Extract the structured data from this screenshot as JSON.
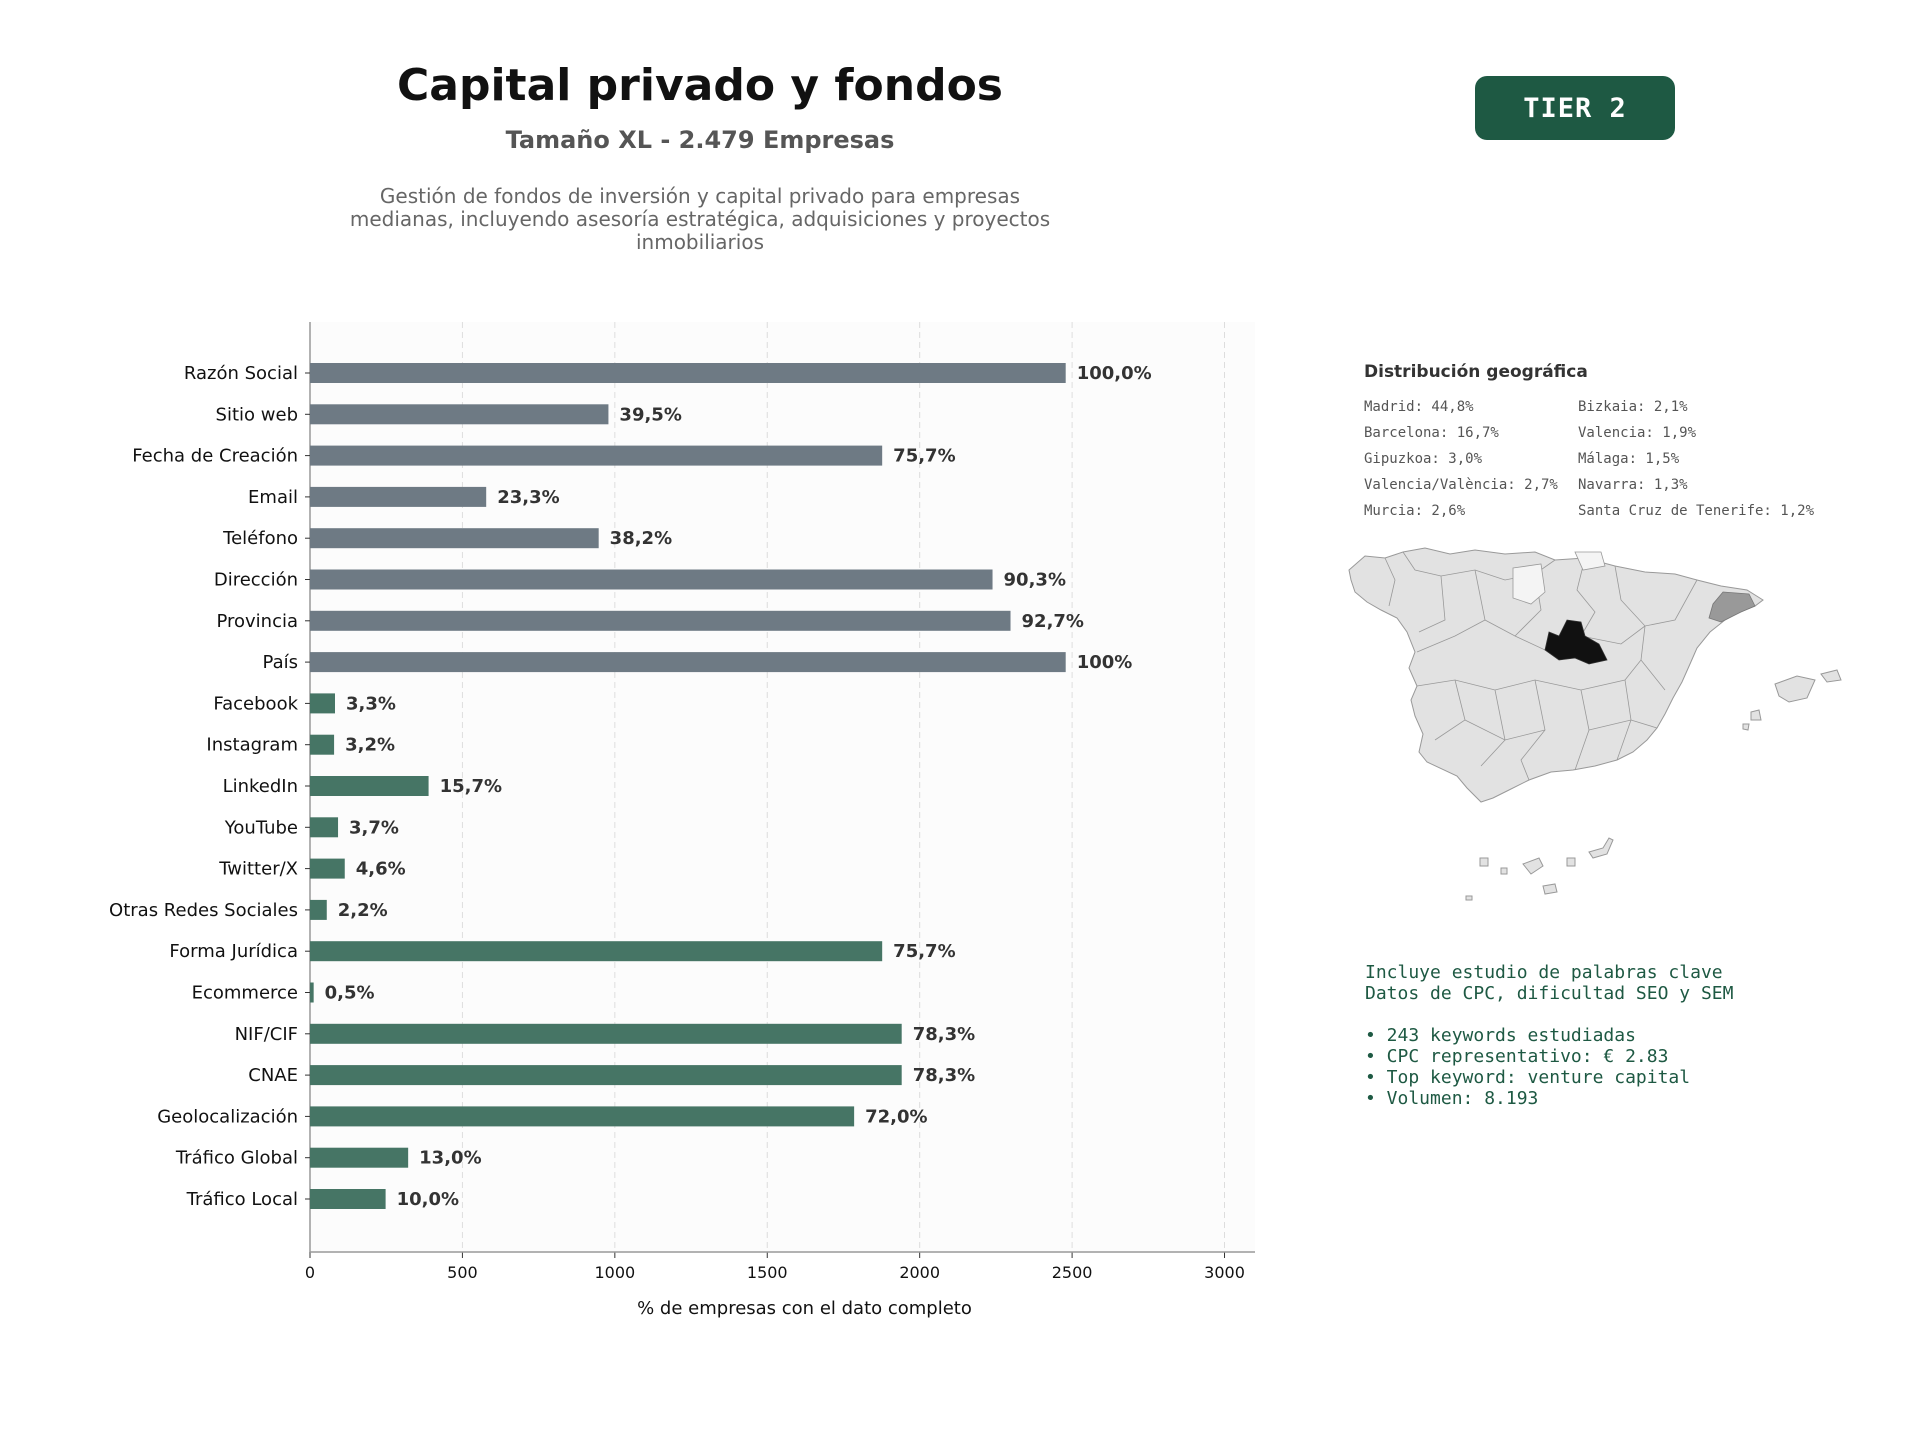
{
  "header": {
    "title": "Capital privado y fondos",
    "subtitle": "Tamaño XL - 2.479 Empresas",
    "description": [
      "Gestión de fondos de inversión y capital privado para empresas",
      "medianas, incluyendo asesoría estratégica, adquisiciones y proyectos",
      "inmobiliarios"
    ],
    "tier_label": "TIER 2"
  },
  "colors": {
    "basic_bar": "#6e7a84",
    "extra_bar": "#467565",
    "accent": "#1e5943"
  },
  "chart_data": {
    "type": "bar",
    "orientation": "horizontal",
    "xlabel": "% de empresas con el dato completo",
    "xlim": [
      0,
      3100
    ],
    "xticks": [
      0,
      500,
      1000,
      1500,
      2000,
      2500,
      3000
    ],
    "grid": "vertical dashed",
    "categories": [
      "Razón Social",
      "Sitio web",
      "Fecha de Creación",
      "Email",
      "Teléfono",
      "Dirección",
      "Provincia",
      "País",
      "Facebook",
      "Instagram",
      "LinkedIn",
      "YouTube",
      "Twitter/X",
      "Otras Redes Sociales",
      "Forma Jurídica",
      "Ecommerce",
      "NIF/CIF",
      "CNAE",
      "Geolocalización",
      "Tráfico Global",
      "Tráfico Local"
    ],
    "values": [
      2479,
      979,
      1877,
      578,
      947,
      2239,
      2298,
      2479,
      82,
      79,
      389,
      92,
      114,
      55,
      1877,
      12,
      1941,
      1941,
      1785,
      322,
      248
    ],
    "labels": [
      "100,0%",
      "39,5%",
      "75,7%",
      "23,3%",
      "38,2%",
      "90,3%",
      "92,7%",
      "100%",
      "3,3%",
      "3,2%",
      "15,7%",
      "3,7%",
      "4,6%",
      "2,2%",
      "75,7%",
      "0,5%",
      "78,3%",
      "78,3%",
      "72,0%",
      "13,0%",
      "10,0%"
    ],
    "groups": [
      "basic",
      "basic",
      "basic",
      "basic",
      "basic",
      "basic",
      "basic",
      "basic",
      "extra",
      "extra",
      "extra",
      "extra",
      "extra",
      "extra",
      "extra",
      "extra",
      "extra",
      "extra",
      "extra",
      "extra",
      "extra"
    ]
  },
  "geo": {
    "title": "Distribución geográfica",
    "col1": [
      "Madrid: 44,8%",
      "Barcelona: 16,7%",
      "Gipuzkoa: 3,0%",
      "Valencia/València: 2,7%",
      "Murcia: 2,6%"
    ],
    "col2": [
      "Bizkaia: 2,1%",
      "Valencia: 1,9%",
      "Málaga: 1,5%",
      "Navarra: 1,3%",
      "Santa Cruz de Tenerife: 1,2%"
    ],
    "map_colors": {
      "land": "#e2e2e2",
      "border": "#999999",
      "madrid": "#111111",
      "barcelona": "#999999",
      "light": "#f4f4f4"
    }
  },
  "keywords": {
    "line1": "Incluye estudio de palabras clave",
    "line2": "Datos de CPC, dificultad SEO y SEM",
    "items": [
      "• 243 keywords estudiadas",
      "• CPC representativo: € 2.83",
      "• Top keyword: venture capital",
      "• Volumen: 8.193"
    ]
  }
}
